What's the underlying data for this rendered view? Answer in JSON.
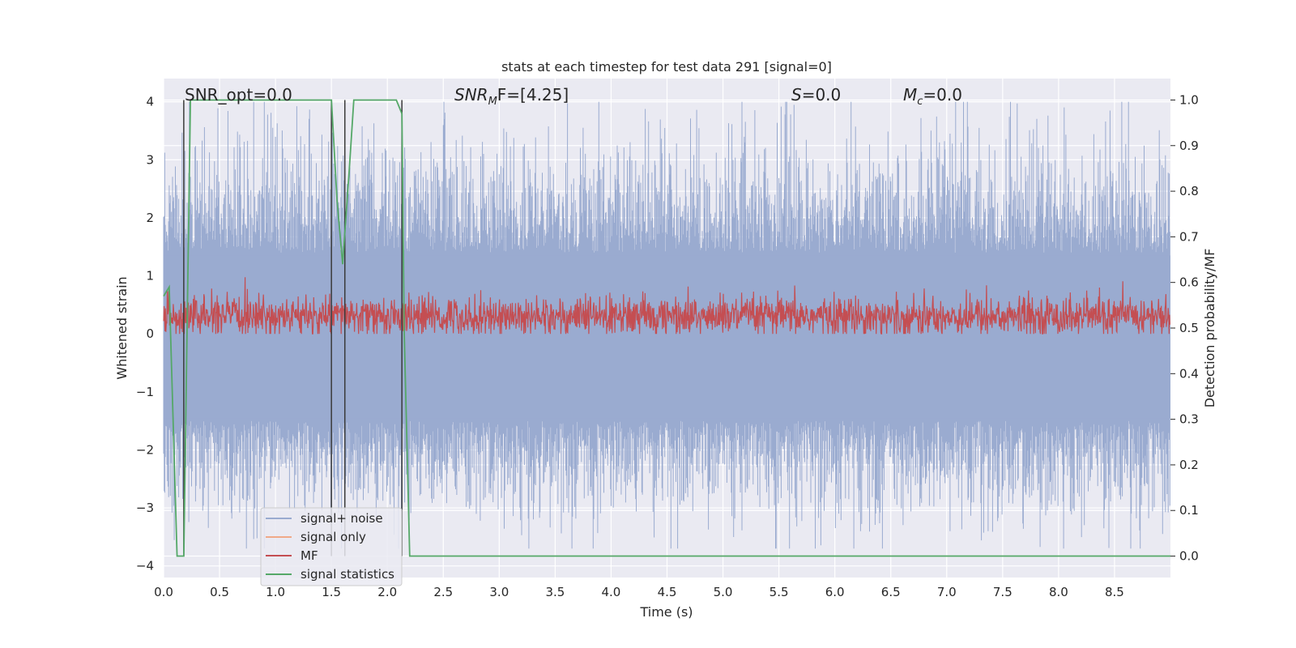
{
  "chart_data": {
    "type": "line",
    "title": "stats at each timestep for test data 291 [signal=0]",
    "xlabel": "Time (s)",
    "ylabel": "Whitened strain",
    "y2label": "Detection probability/MF",
    "xlim": [
      0,
      9
    ],
    "ylim": [
      -4.2,
      4.4
    ],
    "y2lim": [
      -0.047,
      1.047
    ],
    "grid": true,
    "legend_position": "lower-left",
    "x_ticks": [
      "0.0",
      "0.5",
      "1.0",
      "1.5",
      "2.0",
      "2.5",
      "3.0",
      "3.5",
      "4.0",
      "4.5",
      "5.0",
      "5.5",
      "6.0",
      "6.5",
      "7.0",
      "7.5",
      "8.0",
      "8.5"
    ],
    "y_ticks": [
      "−4",
      "−3",
      "−2",
      "−1",
      "0",
      "1",
      "2",
      "3",
      "4"
    ],
    "y2_ticks": [
      "0.0",
      "0.1",
      "0.2",
      "0.3",
      "0.4",
      "0.5",
      "0.6",
      "0.7",
      "0.8",
      "0.9",
      "1.0"
    ],
    "annotations": [
      {
        "id": "snr-opt",
        "text": "SNR_opt=0.0"
      },
      {
        "id": "snr-mf",
        "base": "SNR",
        "sub": "M",
        "rest": "F=[4.25]"
      },
      {
        "id": "s",
        "base": "S",
        "rest": "=0.0"
      },
      {
        "id": "mc",
        "base": "M",
        "sub": "c",
        "rest": "=0.0"
      }
    ],
    "series": [
      {
        "name": "signal+ noise",
        "color": "#9aabd0",
        "axis": "left",
        "description_range": [
          -3.7,
          4.0
        ]
      },
      {
        "name": "signal only",
        "color": "#f0a988",
        "axis": "left"
      },
      {
        "name": "MF",
        "color": "#c44e52",
        "axis": "left",
        "description_range": [
          0.0,
          1.0
        ]
      },
      {
        "name": "signal statistics",
        "color": "#55a868",
        "axis": "right",
        "x": [
          0.0,
          0.05,
          0.12,
          0.18,
          0.24,
          0.26,
          1.0,
          1.5,
          1.55,
          1.6,
          1.66,
          1.7,
          2.08,
          2.13,
          2.15,
          2.2,
          8.3,
          9.0
        ],
        "values": [
          0.57,
          0.59,
          0.0,
          0.0,
          1.0,
          1.0,
          1.0,
          1.0,
          0.78,
          0.64,
          0.85,
          1.0,
          1.0,
          0.97,
          0.5,
          0.0,
          0.0,
          0.0
        ]
      }
    ],
    "vertical_lines_x": [
      0.18,
      1.5,
      1.62,
      2.13
    ]
  }
}
